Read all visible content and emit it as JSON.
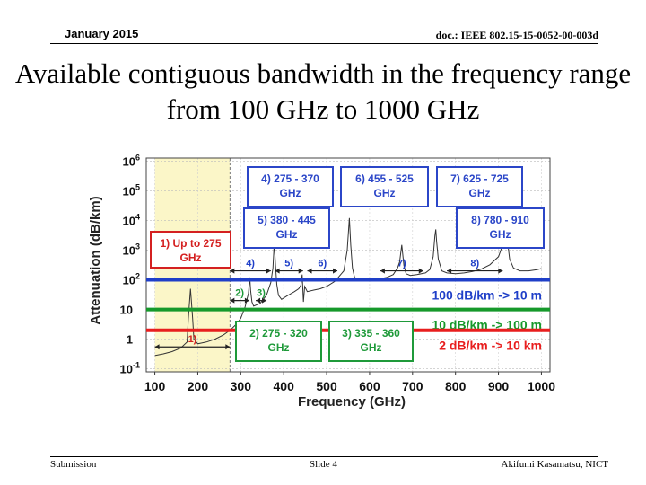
{
  "header": {
    "date": "January 2015",
    "doc": "doc.: IEEE 802.15-15-0052-00-003d"
  },
  "title": "Available contiguous bandwidth in the frequency range from 100 GHz to 1000 GHz",
  "footer": {
    "left": "Submission",
    "center": "Slide 4",
    "right": "Akifumi Kasamatsu, NICT"
  },
  "colors": {
    "blue": "#1f3fc8",
    "green": "#16992b",
    "red": "#e81e1e",
    "pale": "#fbf6c8",
    "box_blue": "#2b46c8",
    "box_green": "#1f9a3a",
    "box_red": "#d42020"
  },
  "chart_data": {
    "type": "line",
    "title": "",
    "xlabel": "Frequency (GHz)",
    "ylabel": "Attenuation (dB/km)",
    "xlim": [
      80,
      1020
    ],
    "ylim_log10": [
      -1.1,
      6.1
    ],
    "x_ticks": [
      100,
      200,
      300,
      400,
      500,
      600,
      700,
      800,
      900,
      1000
    ],
    "y_ticks": [
      {
        "exp": -1,
        "label": "10",
        "sup": "-1"
      },
      {
        "exp": 0,
        "label": "1",
        "sup": ""
      },
      {
        "exp": 1,
        "label": "10",
        "sup": ""
      },
      {
        "exp": 2,
        "label": "10",
        "sup": "2"
      },
      {
        "exp": 3,
        "label": "10",
        "sup": "3"
      },
      {
        "exp": 4,
        "label": "10",
        "sup": "4"
      },
      {
        "exp": 5,
        "label": "10",
        "sup": "5"
      },
      {
        "exp": 6,
        "label": "10",
        "sup": "6"
      }
    ],
    "shaded_region": [
      100,
      275
    ],
    "thresholds": [
      {
        "value": 100,
        "label": "100 dB/km -> 10 m",
        "color": "#1f3fc8"
      },
      {
        "value": 10,
        "label": "10 dB/km -> 100 m",
        "color": "#16992b"
      },
      {
        "value": 2,
        "label": "2 dB/km -> 10 km",
        "color": "#e81e1e"
      }
    ],
    "series": [
      {
        "name": "attenuation",
        "x": [
          100,
          120,
          140,
          160,
          175,
          178,
          183,
          188,
          191,
          200,
          220,
          240,
          260,
          275,
          290,
          300,
          310,
          318,
          321,
          323,
          326,
          330,
          345,
          360,
          370,
          375,
          378,
          381,
          384,
          388,
          395,
          410,
          425,
          435,
          440,
          443,
          446,
          449,
          455,
          470,
          485,
          500,
          520,
          540,
          548,
          553,
          556,
          560,
          565,
          575,
          590,
          610,
          625,
          640,
          655,
          665,
          670,
          675,
          680,
          685,
          695,
          710,
          730,
          740,
          748,
          752,
          754,
          756,
          760,
          768,
          780,
          800,
          820,
          840,
          860,
          880,
          900,
          910,
          915,
          918,
          920,
          922,
          926,
          935,
          950,
          970,
          990,
          1000
        ],
        "y": [
          0.28,
          0.32,
          0.38,
          0.5,
          0.8,
          5,
          50,
          5,
          1,
          0.7,
          0.8,
          1,
          1.4,
          2,
          3.2,
          5,
          12,
          35,
          120,
          45,
          18,
          13,
          16,
          30,
          80,
          250,
          1800,
          300,
          70,
          30,
          22,
          30,
          40,
          50,
          65,
          150,
          18,
          60,
          40,
          45,
          50,
          60,
          90,
          200,
          1000,
          12000,
          1500,
          250,
          120,
          100,
          95,
          100,
          110,
          120,
          150,
          250,
          400,
          1500,
          300,
          160,
          140,
          150,
          170,
          220,
          600,
          3000,
          5000,
          2000,
          500,
          200,
          170,
          160,
          170,
          190,
          230,
          320,
          600,
          1500,
          4000,
          8000,
          4000,
          1500,
          500,
          250,
          200,
          200,
          220,
          240
        ]
      }
    ],
    "annotations": [
      {
        "text": "1) Up to 275\nGHz",
        "kind": "box",
        "color": "#d42020"
      },
      {
        "text": "4) 275 - 370\nGHz",
        "kind": "box",
        "color": "#2b46c8"
      },
      {
        "text": "6) 455 - 525\nGHz",
        "kind": "box",
        "color": "#2b46c8"
      },
      {
        "text": "7) 625 - 725\nGHz",
        "kind": "box",
        "color": "#2b46c8"
      },
      {
        "text": "5) 380 - 445\nGHz",
        "kind": "box",
        "color": "#2b46c8"
      },
      {
        "text": "8) 780 - 910\nGHz",
        "kind": "box",
        "color": "#2b46c8"
      },
      {
        "text": "2) 275 - 320\nGHz",
        "kind": "box",
        "color": "#1f9a3a"
      },
      {
        "text": "3) 335 - 360\nGHz",
        "kind": "box",
        "color": "#1f9a3a"
      },
      {
        "text": "1)",
        "kind": "mark",
        "color": "#d42020",
        "range": [
          100,
          275
        ],
        "level": 0.55
      },
      {
        "text": "2)",
        "kind": "mark",
        "color": "#1f9a3a",
        "range": [
          275,
          320
        ],
        "level": 20
      },
      {
        "text": "3)",
        "kind": "mark",
        "color": "#1f9a3a",
        "range": [
          335,
          360
        ],
        "level": 20
      },
      {
        "text": "4)",
        "kind": "mark",
        "color": "#1f3fc8",
        "range": [
          275,
          370
        ],
        "level": 200
      },
      {
        "text": "5)",
        "kind": "mark",
        "color": "#1f3fc8",
        "range": [
          380,
          445
        ],
        "level": 200
      },
      {
        "text": "6)",
        "kind": "mark",
        "color": "#1f3fc8",
        "range": [
          455,
          525
        ],
        "level": 200
      },
      {
        "text": "7)",
        "kind": "mark",
        "color": "#1f3fc8",
        "range": [
          625,
          725
        ],
        "level": 200
      },
      {
        "text": "8)",
        "kind": "mark",
        "color": "#1f3fc8",
        "range": [
          780,
          910
        ],
        "level": 200
      }
    ]
  }
}
